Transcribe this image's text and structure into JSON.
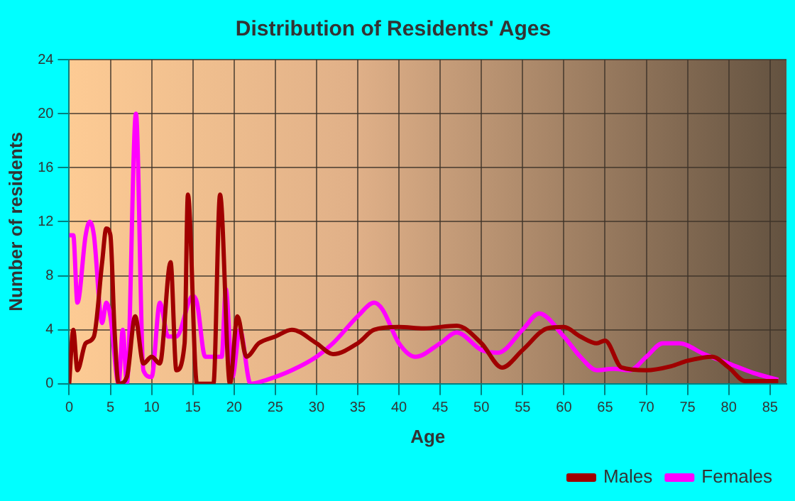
{
  "chart_data": {
    "type": "line",
    "title": "Distribution of Residents' Ages",
    "xlabel": "Age",
    "ylabel": "Number of residents",
    "xlim": [
      0,
      87
    ],
    "xticks": [
      0,
      5,
      10,
      15,
      20,
      25,
      30,
      35,
      40,
      45,
      50,
      55,
      60,
      65,
      70,
      75,
      80,
      85
    ],
    "ylim": [
      0,
      24
    ],
    "yticks": [
      0,
      4,
      8,
      12,
      16,
      20,
      24
    ],
    "grid": true,
    "legend": "bottom right",
    "marker": "none",
    "line_style": "solid",
    "series": [
      {
        "name": "Males",
        "color": "#a00000",
        "x": [
          0,
          0.5,
          1,
          2,
          3,
          4,
          4.5,
          5,
          5.5,
          6,
          7,
          8,
          9,
          10,
          11,
          12.3,
          13,
          14,
          14.4,
          15.5,
          16.5,
          17.5,
          18.3,
          19.5,
          20.4,
          21.5,
          23,
          25,
          27,
          30,
          32,
          35,
          37,
          40,
          43,
          47,
          50,
          52.5,
          55,
          58,
          60,
          62,
          64,
          65,
          67,
          70,
          73,
          75,
          78,
          80,
          82,
          86
        ],
        "values": [
          0,
          4,
          1,
          3,
          3.5,
          9,
          11.5,
          11,
          4,
          0,
          0.5,
          5,
          1.5,
          2,
          1.5,
          9,
          1,
          3,
          14,
          0,
          0,
          0,
          14,
          0,
          5,
          2,
          3,
          3.5,
          4,
          3,
          2.2,
          3,
          4,
          4.2,
          4.1,
          4.3,
          3,
          1.2,
          2.5,
          4.1,
          4.2,
          3.5,
          3,
          3.2,
          1.2,
          1,
          1.3,
          1.7,
          2,
          1.2,
          0.2,
          0.2
        ]
      },
      {
        "name": "Females",
        "color": "#ff00ff",
        "x": [
          0,
          0.5,
          1,
          2,
          2.5,
          3,
          4,
          4.5,
          5,
          6,
          6.5,
          7,
          8.1,
          9,
          10,
          11,
          12,
          13,
          15,
          15.5,
          16.5,
          17.5,
          18.5,
          19,
          19.8,
          20.7,
          22,
          24,
          27,
          30,
          32,
          35,
          37,
          38,
          40,
          42,
          45,
          47,
          50,
          52,
          55,
          57,
          60,
          62,
          64,
          66,
          68,
          70,
          72,
          74,
          77,
          80,
          83,
          86
        ],
        "values": [
          11,
          11,
          6,
          11,
          12,
          11,
          4.5,
          6,
          5,
          0,
          4,
          0,
          20,
          1,
          0.5,
          6,
          3.5,
          3.5,
          6.5,
          6,
          2,
          2,
          2,
          7,
          0.5,
          4,
          0,
          0.3,
          1,
          2,
          3,
          5,
          6,
          5.5,
          3,
          2,
          3,
          3.8,
          2.5,
          2.3,
          4,
          5.2,
          3.5,
          2,
          1,
          1.1,
          1,
          2,
          3,
          3,
          2.2,
          1.5,
          0.8,
          0.3
        ]
      }
    ]
  }
}
